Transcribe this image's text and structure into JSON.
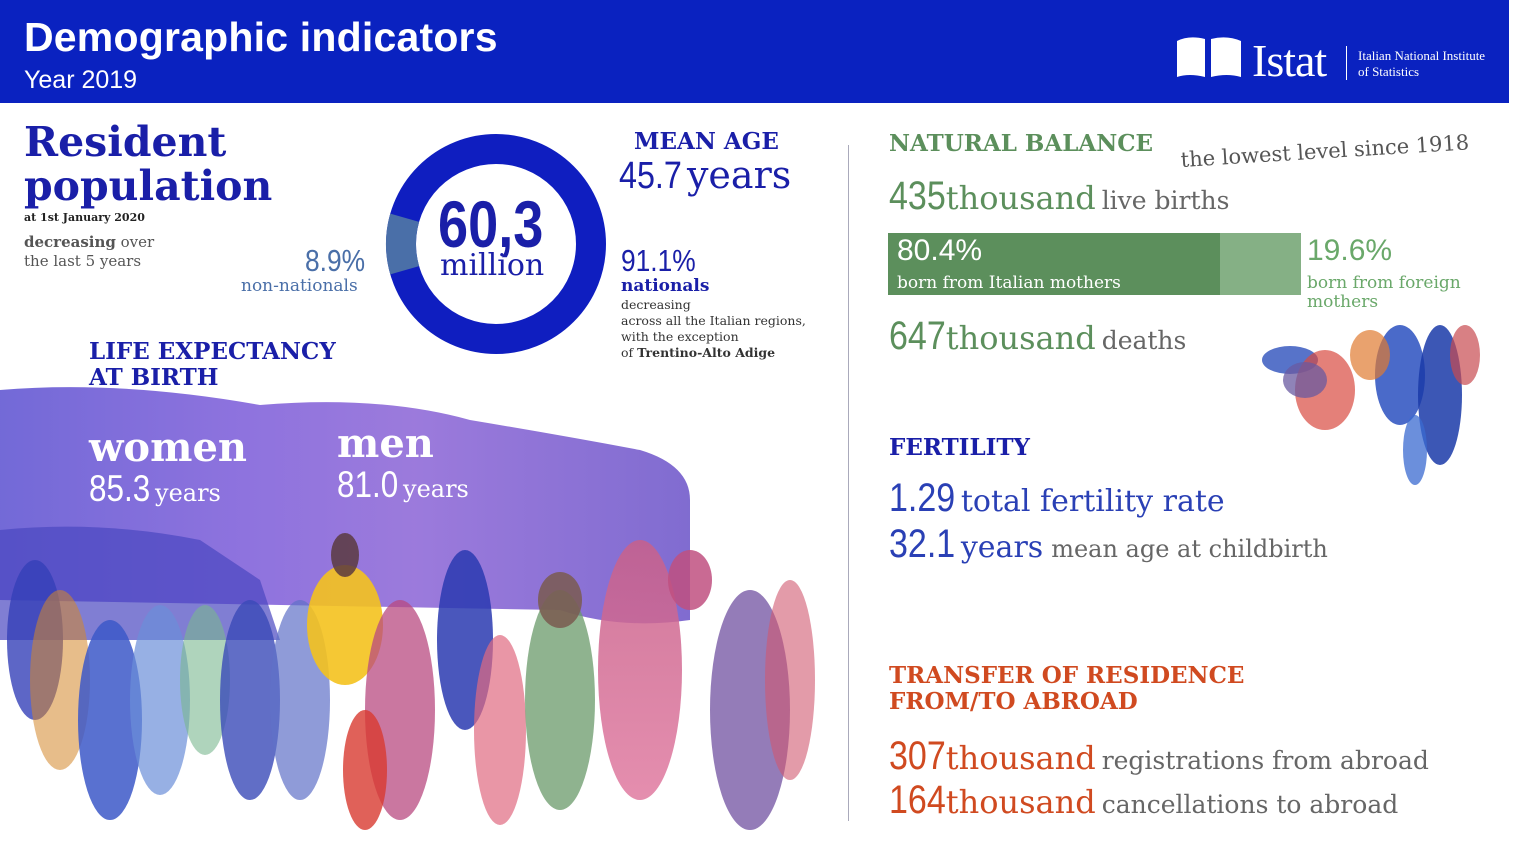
{
  "header": {
    "title": "Demographic indicators",
    "subtitle": "Year 2019",
    "logo_text": "Istat",
    "logo_sub_line1": "Italian National Institute",
    "logo_sub_line2": "of Statistics",
    "color": "#0a22c0"
  },
  "resident_population": {
    "title_line1": "Resident",
    "title_line2": "population",
    "date": "at 1st January 2020",
    "trend_bold": "decreasing",
    "trend_rest": " over",
    "trend_line2": "the last 5 years",
    "total_value": "60,3",
    "total_unit": "million",
    "non_nationals_value": "8.9",
    "non_nationals_pct": "%",
    "non_nationals_label": "non-nationals",
    "non_nationals_share": 8.9,
    "nationals_value": "91.1",
    "nationals_pct": "%",
    "nationals_label": "nationals",
    "nationals_note_line1": "decreasing",
    "nationals_note_line2": "across all the Italian regions,",
    "nationals_note_line3": "with the exception",
    "nationals_note_line4_prefix": "of ",
    "nationals_note_line4_bold": "Trentino-Alto Adige"
  },
  "mean_age": {
    "label": "MEAN AGE",
    "value": "45.7",
    "unit": "years"
  },
  "life_expectancy": {
    "label_line1": "LIFE EXPECTANCY",
    "label_line2": "AT BIRTH",
    "women_label": "women",
    "women_value": "85.3",
    "women_unit": "years",
    "men_label": "men",
    "men_value": "81.0",
    "men_unit": "years"
  },
  "natural_balance": {
    "label": "NATURAL BALANCE",
    "note": "the lowest level since 1918",
    "births_value": "435",
    "births_unit": "thousand",
    "births_label": "live births",
    "italian_mothers_value": "80.4",
    "italian_mothers_pct": "%",
    "italian_mothers_label": "born from Italian mothers",
    "italian_mothers_share": 80.4,
    "foreign_mothers_value": "19.6",
    "foreign_mothers_pct": "%",
    "foreign_mothers_label_line1": "born from foreign",
    "foreign_mothers_label_line2": "mothers",
    "deaths_value": "647",
    "deaths_unit": "thousand",
    "deaths_label": "deaths"
  },
  "fertility": {
    "label": "FERTILITY",
    "tfr_value": "1.29",
    "tfr_label": "total fertility rate",
    "mac_value": "32.1",
    "mac_unit": "years",
    "mac_label": "mean age at childbirth"
  },
  "transfer": {
    "label_line1": "TRANSFER OF RESIDENCE",
    "label_line2": "FROM/TO ABROAD",
    "reg_value": "307",
    "reg_unit": "thousand",
    "reg_label": "registrations from abroad",
    "can_value": "164",
    "can_unit": "thousand",
    "can_label": "cancellations to abroad"
  },
  "colors": {
    "navy": "#1a1fa8",
    "green": "#5c8f5c",
    "orange": "#d04a20",
    "steel": "#4a6fa8"
  }
}
